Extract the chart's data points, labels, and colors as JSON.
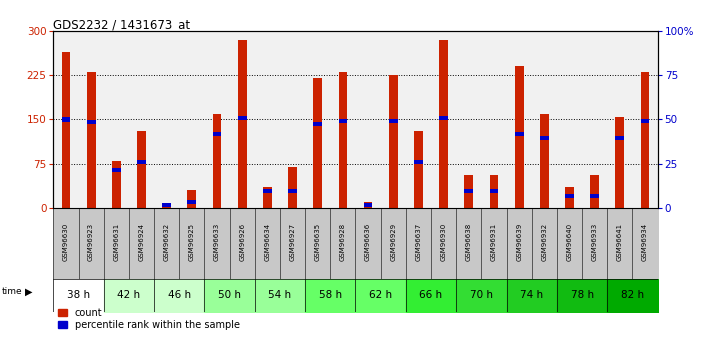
{
  "title": "GDS2232 / 1431673_at",
  "samples": [
    "GSM96630",
    "GSM96923",
    "GSM96631",
    "GSM96924",
    "GSM96632",
    "GSM96925",
    "GSM96633",
    "GSM96926",
    "GSM96634",
    "GSM96927",
    "GSM96635",
    "GSM96928",
    "GSM96636",
    "GSM96929",
    "GSM96637",
    "GSM96930",
    "GSM96638",
    "GSM96931",
    "GSM96639",
    "GSM96932",
    "GSM96640",
    "GSM96933",
    "GSM96641",
    "GSM96934"
  ],
  "counts": [
    265,
    230,
    80,
    130,
    5,
    30,
    160,
    285,
    35,
    70,
    220,
    230,
    10,
    225,
    130,
    285,
    55,
    55,
    240,
    160,
    35,
    55,
    155,
    230
  ],
  "percentile_ranks": [
    150,
    145,
    65,
    78,
    5,
    10,
    125,
    152,
    28,
    28,
    142,
    147,
    5,
    148,
    78,
    152,
    28,
    28,
    125,
    118,
    20,
    20,
    118,
    148
  ],
  "ylim_left": [
    0,
    300
  ],
  "ylim_right": [
    0,
    100
  ],
  "yticks_left": [
    0,
    75,
    150,
    225,
    300
  ],
  "yticks_right": [
    0,
    25,
    50,
    75,
    100
  ],
  "bar_color": "#cc2200",
  "marker_color": "#0000cc",
  "bg_color": "#ffffff",
  "sample_bg_color": "#c8c8c8",
  "time_group_colors": [
    "#ffffff",
    "#ccffcc",
    "#ccffcc",
    "#99ff99",
    "#99ff99",
    "#66ff66",
    "#66ff66",
    "#33ee33",
    "#33dd33",
    "#22cc22",
    "#11bb11",
    "#00aa00"
  ],
  "time_labels": [
    "38 h",
    "42 h",
    "46 h",
    "50 h",
    "54 h",
    "58 h",
    "62 h",
    "66 h",
    "70 h",
    "74 h",
    "78 h",
    "82 h"
  ]
}
